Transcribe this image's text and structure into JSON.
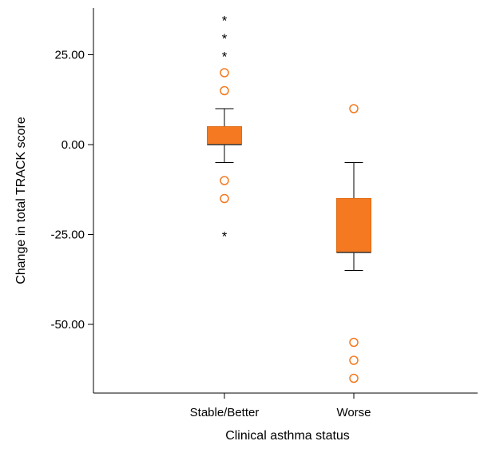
{
  "chart_data": {
    "type": "boxplot",
    "xlabel": "Clinical asthma status",
    "ylabel": "Change in total TRACK score",
    "ylim": [
      -69,
      38
    ],
    "yticks": [
      {
        "value": 25,
        "label": "25.00"
      },
      {
        "value": 0,
        "label": "0.00"
      },
      {
        "value": -25,
        "label": "-25.00"
      },
      {
        "value": -50,
        "label": "-50.00"
      }
    ],
    "categories": [
      "Stable/Better",
      "Worse"
    ],
    "boxes": [
      {
        "category": "Stable/Better",
        "whisker_low": -5,
        "q1": 0,
        "median": 0,
        "q3": 5,
        "whisker_high": 10,
        "outliers": [
          20,
          15,
          -10,
          -15
        ],
        "extremes": [
          35,
          30,
          25,
          -25
        ]
      },
      {
        "category": "Worse",
        "whisker_low": -35,
        "q1": -30,
        "median": -30,
        "q3": -15,
        "whisker_high": -5,
        "outliers": [
          10,
          -55,
          -60,
          -65
        ],
        "extremes": []
      }
    ],
    "colors": {
      "box": "#f47920",
      "outlier": "#f47920",
      "axis": "#000000",
      "extreme": "#000000"
    },
    "grid": false,
    "legend": "none"
  }
}
